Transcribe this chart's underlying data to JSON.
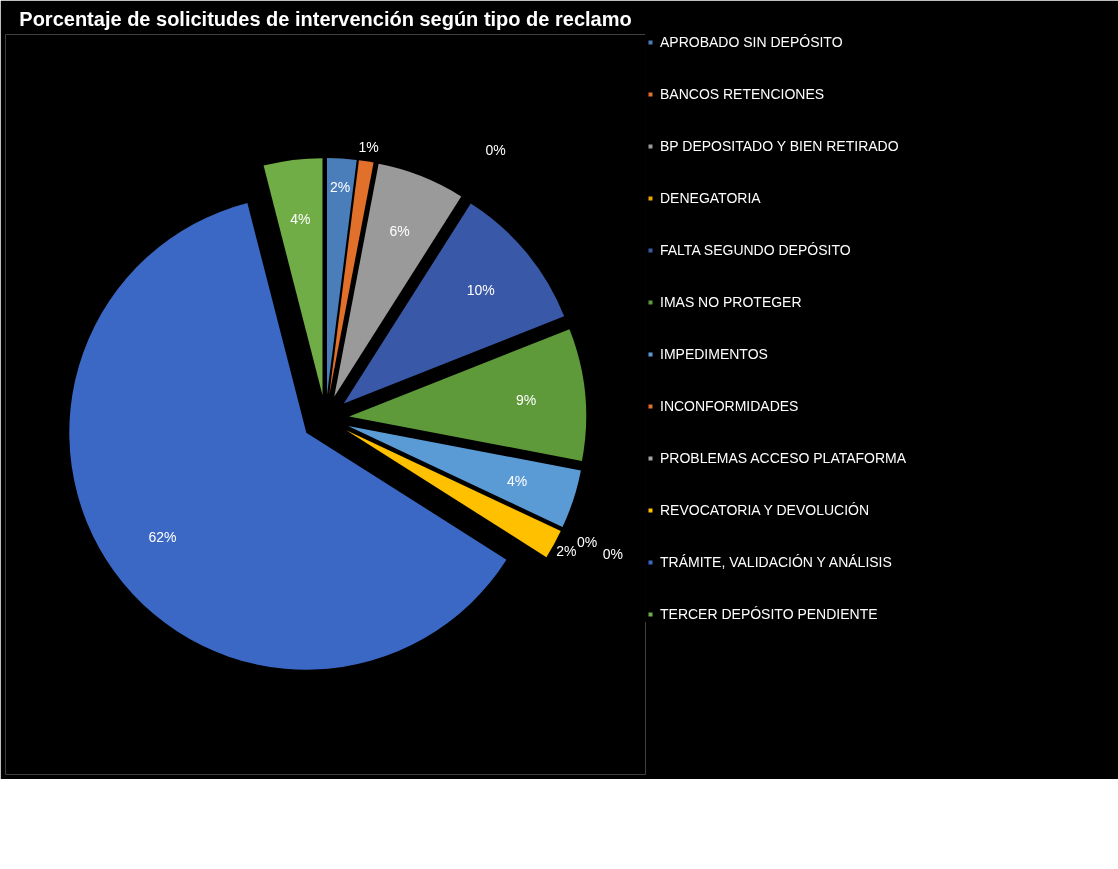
{
  "chart_data": {
    "type": "pie",
    "title": "Porcentaje de solicitudes de intervención según tipo de reclamo",
    "categories": [
      "APROBADO SIN DEPÓSITO",
      "BANCOS RETENCIONES",
      "BP DEPOSITADO Y BIEN RETIRADO",
      "DENEGATORIA",
      "FALTA SEGUNDO DEPÓSITO",
      "IMAS NO PROTEGER",
      "IMPEDIMENTOS",
      "INCONFORMIDADES",
      "PROBLEMAS ACCESO PLATAFORMA",
      "REVOCATORIA Y DEVOLUCIÓN",
      "TRÁMITE, VALIDACIÓN Y ANÁLISIS",
      "TERCER DEPÓSITO PENDIENTE"
    ],
    "values": [
      2,
      1,
      6,
      0,
      10,
      9,
      4,
      0,
      0,
      2,
      62,
      4
    ],
    "value_labels": [
      "2%",
      "1%",
      "6%",
      "0%",
      "10%",
      "9%",
      "4%",
      "0%",
      "0%",
      "2%",
      "62%",
      "4%"
    ],
    "colors": [
      "#4a7ebb",
      "#e0702a",
      "#9a9a9a",
      "#e8a800",
      "#3a58a8",
      "#5e9a3a",
      "#5b9bd5",
      "#e0702a",
      "#a5a5a5",
      "#ffc000",
      "#3a68c4",
      "#70ad47"
    ],
    "legend": "right"
  }
}
